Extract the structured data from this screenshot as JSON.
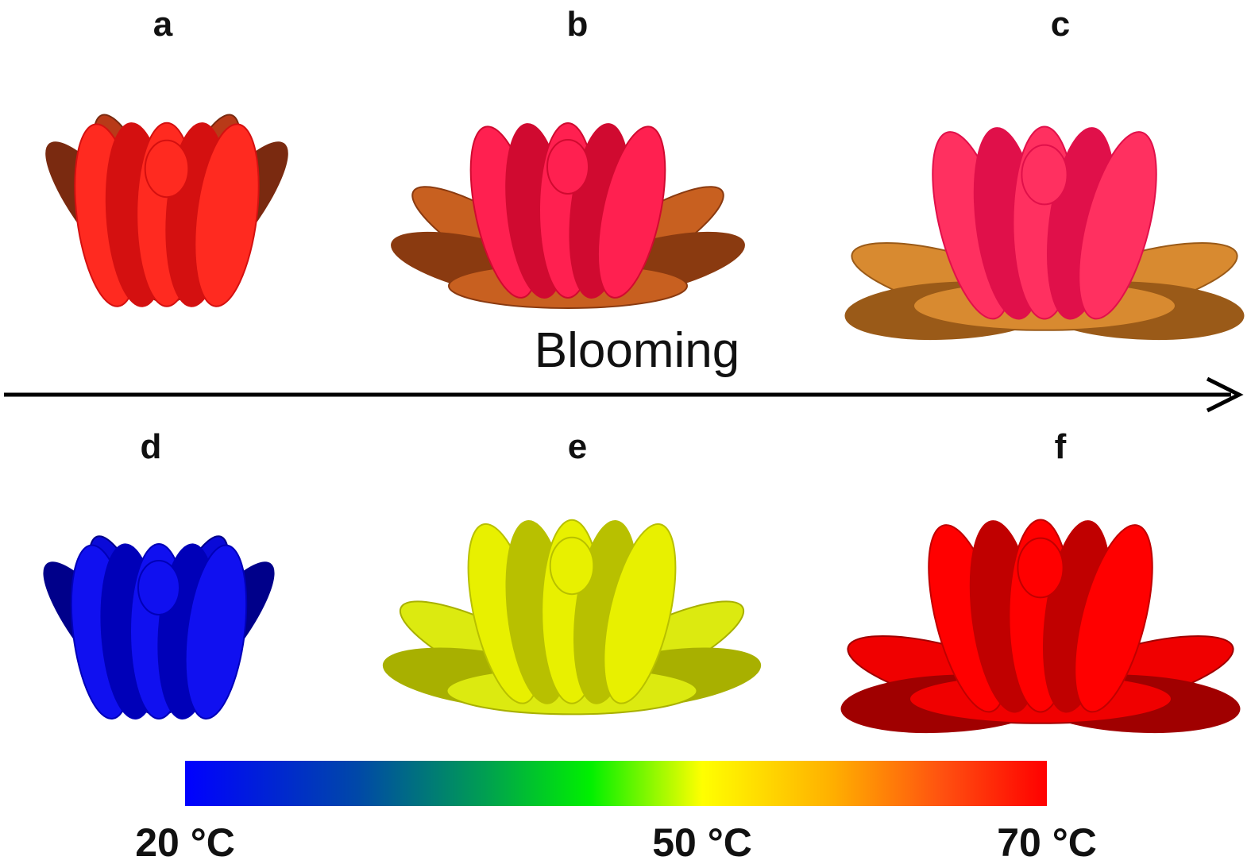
{
  "panels": [
    {
      "label": "a"
    },
    {
      "label": "b"
    },
    {
      "label": "c"
    },
    {
      "label": "d"
    },
    {
      "label": "e"
    },
    {
      "label": "f"
    }
  ],
  "arrow_label": "Blooming",
  "colorbar": {
    "lim": [
      20,
      70
    ],
    "ticks": [
      {
        "value": 20,
        "label": "20 °C"
      },
      {
        "value": 50,
        "label": "50 °C"
      },
      {
        "value": 70,
        "label": "70 °C"
      }
    ]
  }
}
